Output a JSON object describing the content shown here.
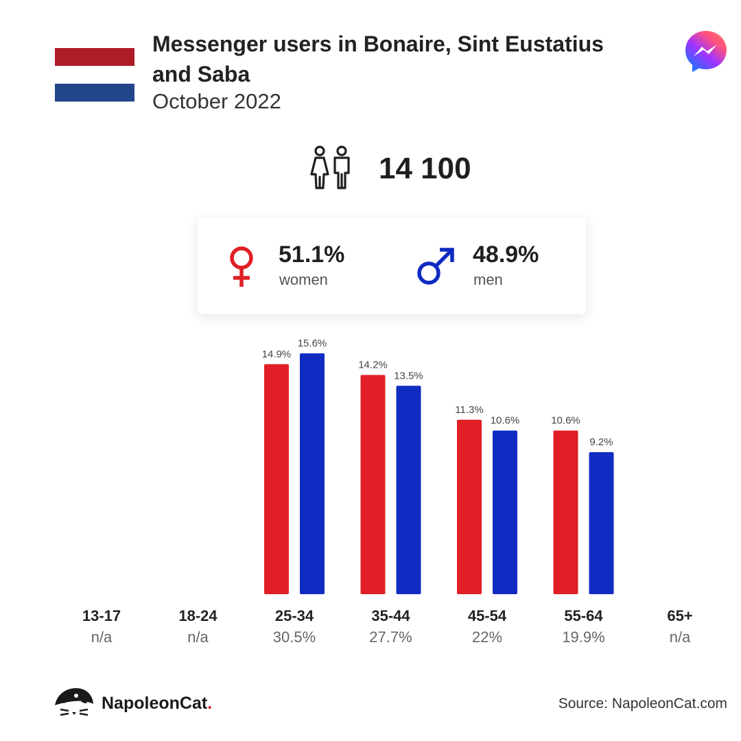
{
  "header": {
    "title": "Messenger users in Bonaire, Sint Eustatius and Saba",
    "subtitle": "October 2022",
    "flag_colors": [
      "#AE1C28",
      "#FFFFFF",
      "#21468B"
    ],
    "app_icon": "messenger-icon"
  },
  "total": {
    "icon": "people-icon",
    "value": "14 100"
  },
  "gender": {
    "women": {
      "icon": "female-symbol-icon",
      "percent": "51.1%",
      "label": "women",
      "color": "#E01F26"
    },
    "men": {
      "icon": "male-symbol-icon",
      "percent": "48.9%",
      "label": "men",
      "color": "#102BC2"
    }
  },
  "chart_data": {
    "type": "bar",
    "categories": [
      "13-17",
      "18-24",
      "25-34",
      "35-44",
      "45-54",
      "55-64",
      "65+"
    ],
    "category_totals": [
      "n/a",
      "n/a",
      "30.5%",
      "27.7%",
      "22%",
      "19.9%",
      "n/a"
    ],
    "series": [
      {
        "name": "women",
        "color": "#E01F26",
        "values": [
          null,
          null,
          14.9,
          14.2,
          11.3,
          10.6,
          null
        ],
        "labels": [
          "",
          "",
          "14.9%",
          "14.2%",
          "11.3%",
          "10.6%",
          ""
        ]
      },
      {
        "name": "men",
        "color": "#102BC2",
        "values": [
          null,
          null,
          15.6,
          13.5,
          10.6,
          9.2,
          null
        ],
        "labels": [
          "",
          "",
          "15.6%",
          "13.5%",
          "10.6%",
          "9.2%",
          ""
        ]
      }
    ],
    "xlabel": "",
    "ylabel": "",
    "ylim": [
      0,
      16
    ],
    "grid": false
  },
  "footer": {
    "brand": "NapoleonCat",
    "brand_dot": ".",
    "logo_icon": "napoleoncat-logo-icon",
    "source": "Source: NapoleonCat.com"
  }
}
